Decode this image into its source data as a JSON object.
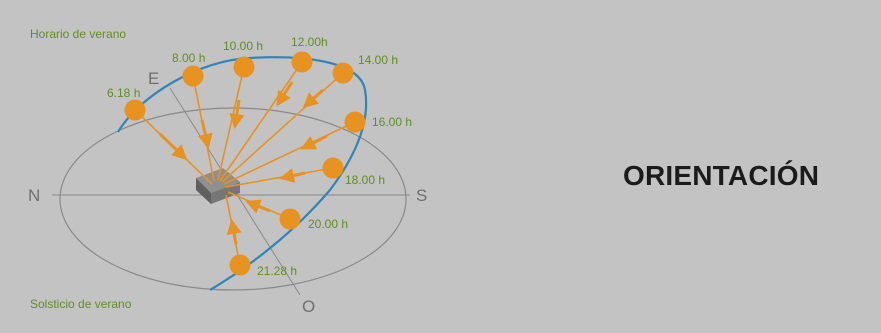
{
  "title": "ORIENTACIÓN",
  "diagram": {
    "caption_top": "Horario de verano",
    "caption_bottom": "Solsticio de verano",
    "compass": {
      "north": "N",
      "south": "S",
      "east": "E",
      "west": "O"
    },
    "sun_positions": [
      "6.18 h",
      "8.00 h",
      "10.00 h",
      "12.00h",
      "14.00 h",
      "16.00 h",
      "18.00 h",
      "20.00 h",
      "21.28 h"
    ],
    "colors": {
      "sun": "#e8921f",
      "arrow": "#e8921f",
      "path": "#2f86b8",
      "label": "#5f8f22",
      "ellipse": "#8a8a8a"
    }
  }
}
